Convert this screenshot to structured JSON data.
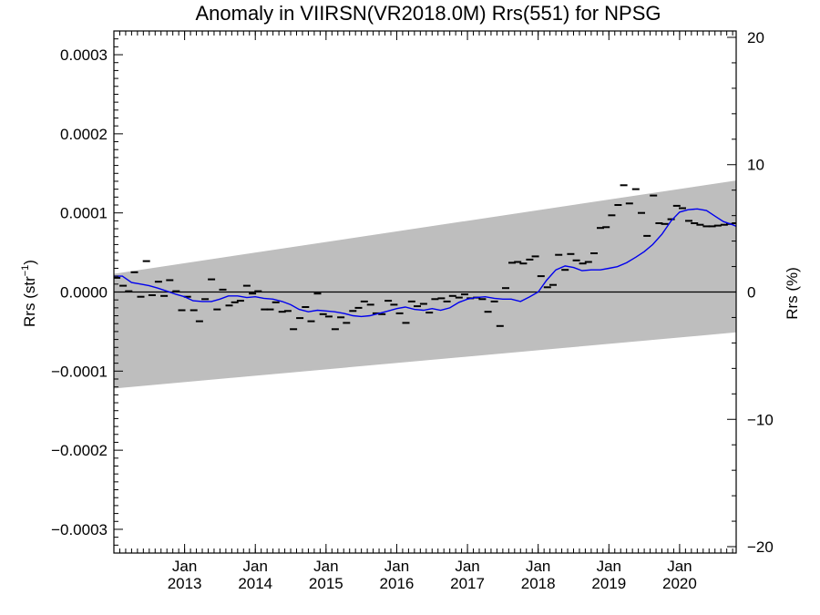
{
  "chart_data": {
    "type": "line",
    "title": "Anomaly in VIIRSN(VR2018.0M) Rrs(551) for NPSG",
    "ylabel": "Rrs (str⁻¹)",
    "ylabel_base": "Rrs (str",
    "ylabel_sup": "−1",
    "ylabel_close": ")",
    "y2label": "Rrs (%)",
    "xlim": [
      2012.0,
      2020.8
    ],
    "ylim": [
      -0.00033,
      0.00033
    ],
    "y2lim": [
      -20.5,
      20.5
    ],
    "yticks": [
      -0.0003,
      -0.0002,
      -0.0001,
      0.0,
      0.0001,
      0.0002,
      0.0003
    ],
    "ytick_labels": [
      "−0.0003",
      "−0.0002",
      "−0.0001",
      "0.0000",
      "0.0001",
      "0.0002",
      "0.0003"
    ],
    "y2ticks": [
      -20,
      -10,
      0,
      10,
      20
    ],
    "y2tick_labels": [
      "−20",
      "−10",
      "0",
      "10",
      "20"
    ],
    "xticks": [
      {
        "x": 2013.0,
        "month": "Jan",
        "year": "2013"
      },
      {
        "x": 2014.0,
        "month": "Jan",
        "year": "2014"
      },
      {
        "x": 2015.0,
        "month": "Jan",
        "year": "2015"
      },
      {
        "x": 2016.0,
        "month": "Jan",
        "year": "2016"
      },
      {
        "x": 2017.0,
        "month": "Jan",
        "year": "2017"
      },
      {
        "x": 2018.0,
        "month": "Jan",
        "year": "2018"
      },
      {
        "x": 2019.0,
        "month": "Jan",
        "year": "2019"
      },
      {
        "x": 2020.0,
        "month": "Jan",
        "year": "2020"
      }
    ],
    "grid": false,
    "band": {
      "color": "#bebebe",
      "lower": [
        [
          2012.0,
          -0.000122
        ],
        [
          2020.8,
          -5.1e-05
        ]
      ],
      "upper": [
        [
          2012.0,
          2.3e-05
        ],
        [
          2020.8,
          0.000141
        ]
      ]
    },
    "zero_line": 0.0,
    "series": [
      {
        "kind": "monthly",
        "color": "#000000",
        "x": [
          2012.04,
          2012.13,
          2012.21,
          2012.29,
          2012.38,
          2012.46,
          2012.54,
          2012.63,
          2012.71,
          2012.79,
          2012.88,
          2012.96,
          2013.04,
          2013.13,
          2013.21,
          2013.29,
          2013.38,
          2013.46,
          2013.54,
          2013.63,
          2013.71,
          2013.79,
          2013.88,
          2013.96,
          2014.04,
          2014.13,
          2014.21,
          2014.29,
          2014.38,
          2014.46,
          2014.54,
          2014.63,
          2014.71,
          2014.79,
          2014.88,
          2014.96,
          2015.04,
          2015.13,
          2015.21,
          2015.29,
          2015.38,
          2015.46,
          2015.54,
          2015.63,
          2015.71,
          2015.79,
          2015.88,
          2015.96,
          2016.04,
          2016.13,
          2016.21,
          2016.29,
          2016.38,
          2016.46,
          2016.54,
          2016.63,
          2016.71,
          2016.79,
          2016.88,
          2016.96,
          2017.04,
          2017.13,
          2017.21,
          2017.29,
          2017.38,
          2017.46,
          2017.54,
          2017.63,
          2017.71,
          2017.79,
          2017.88,
          2017.96,
          2018.04,
          2018.13,
          2018.21,
          2018.29,
          2018.38,
          2018.46,
          2018.54,
          2018.63,
          2018.71,
          2018.79,
          2018.88,
          2018.96,
          2019.04,
          2019.13,
          2019.21,
          2019.29,
          2019.38,
          2019.46,
          2019.54,
          2019.63,
          2019.71,
          2019.79,
          2019.88,
          2019.96,
          2020.04,
          2020.13,
          2020.21,
          2020.29,
          2020.38,
          2020.46,
          2020.54,
          2020.63,
          2020.71,
          2020.79
        ],
        "y": [
          1.8e-05,
          8e-06,
          1e-06,
          2.5e-05,
          -6e-06,
          3.9e-05,
          -4e-06,
          1.3e-05,
          -5e-06,
          1.5e-05,
          1e-06,
          -2.3e-05,
          -6e-06,
          -2.3e-05,
          -3.7e-05,
          -9e-06,
          1.6e-05,
          -2.2e-05,
          3e-06,
          -1.7e-05,
          -1.3e-05,
          -1.1e-05,
          8e-06,
          -2e-06,
          1e-06,
          -2.2e-05,
          -2.2e-05,
          -1.3e-05,
          -2.5e-05,
          -2.4e-05,
          -4.7e-05,
          -3.3e-05,
          -1.9e-05,
          -3.7e-05,
          -2e-06,
          -2.8e-05,
          -3.1e-05,
          -4.7e-05,
          -3.2e-05,
          -3.9e-05,
          -2.4e-05,
          -2e-05,
          -1.2e-05,
          -1.6e-05,
          -2.7e-05,
          -2.8e-05,
          -1.1e-05,
          -1.6e-05,
          -2.7e-05,
          -3.9e-05,
          -1.2e-05,
          -1.8e-05,
          -1.5e-05,
          -2.6e-05,
          -9e-06,
          -8e-06,
          -1.2e-05,
          -5e-06,
          -7e-06,
          -3e-06,
          -8e-06,
          -7e-06,
          -9e-06,
          -2.5e-05,
          -1.2e-05,
          -4.3e-05,
          5e-06,
          3.7e-05,
          3.8e-05,
          3.6e-05,
          4.1e-05,
          4.5e-05,
          2e-05,
          6e-06,
          9e-06,
          4.7e-05,
          2.8e-05,
          4.8e-05,
          4e-05,
          3.6e-05,
          3.8e-05,
          4.9e-05,
          8.1e-05,
          8.2e-05,
          9.7e-05,
          0.00011,
          0.000135,
          0.000112,
          0.00013,
          0.0001,
          7.1e-05,
          0.000122,
          8.7e-05,
          8.6e-05,
          9.2e-05,
          0.000109,
          0.000106,
          9e-05,
          8.7e-05,
          8.5e-05,
          8.3e-05,
          8.3e-05,
          8.4e-05,
          8.5e-05,
          8.6e-05,
          8.7e-05
        ]
      },
      {
        "kind": "running-mean",
        "color": "#0000ee",
        "x": [
          2012.0,
          2012.12,
          2012.25,
          2012.38,
          2012.5,
          2012.62,
          2012.75,
          2012.88,
          2013.0,
          2013.12,
          2013.25,
          2013.38,
          2013.5,
          2013.62,
          2013.75,
          2013.88,
          2014.0,
          2014.12,
          2014.25,
          2014.38,
          2014.5,
          2014.62,
          2014.75,
          2014.88,
          2015.0,
          2015.12,
          2015.25,
          2015.38,
          2015.5,
          2015.62,
          2015.75,
          2015.88,
          2016.0,
          2016.12,
          2016.25,
          2016.38,
          2016.5,
          2016.62,
          2016.75,
          2016.88,
          2017.0,
          2017.12,
          2017.25,
          2017.38,
          2017.5,
          2017.62,
          2017.75,
          2017.88,
          2018.0,
          2018.12,
          2018.25,
          2018.38,
          2018.5,
          2018.62,
          2018.75,
          2018.88,
          2019.0,
          2019.12,
          2019.25,
          2019.38,
          2019.5,
          2019.62,
          2019.75,
          2019.88,
          2020.0,
          2020.12,
          2020.25,
          2020.38,
          2020.5,
          2020.62,
          2020.75,
          2020.8
        ],
        "y": [
          2e-05,
          2e-05,
          1.2e-05,
          1e-05,
          8e-06,
          5e-06,
          1e-06,
          -3e-06,
          -6e-06,
          -1.1e-05,
          -1.2e-05,
          -1.2e-05,
          -9e-06,
          -5e-06,
          -5e-06,
          -7e-06,
          -6e-06,
          -8e-06,
          -9e-06,
          -1.2e-05,
          -1.6e-05,
          -2.2e-05,
          -2.5e-05,
          -2.3e-05,
          -2.4e-05,
          -2.5e-05,
          -2.7e-05,
          -3e-05,
          -3.1e-05,
          -3e-05,
          -2.7e-05,
          -2.4e-05,
          -2.1e-05,
          -1.9e-05,
          -2.2e-05,
          -2.3e-05,
          -2.1e-05,
          -2.3e-05,
          -2e-05,
          -1.3e-05,
          -9e-06,
          -7e-06,
          -6e-06,
          -8e-06,
          -9e-06,
          -9e-06,
          -1.2e-05,
          -6e-06,
          0.0,
          1.5e-05,
          2.8e-05,
          3.3e-05,
          3.1e-05,
          2.7e-05,
          2.8e-05,
          2.8e-05,
          3e-05,
          3.2e-05,
          3.7e-05,
          4.4e-05,
          5.1e-05,
          6e-05,
          7.3e-05,
          9e-05,
          0.000101,
          0.000104,
          0.000105,
          0.000103,
          9.6e-05,
          8.9e-05,
          8.5e-05,
          8.3e-05
        ]
      }
    ]
  }
}
